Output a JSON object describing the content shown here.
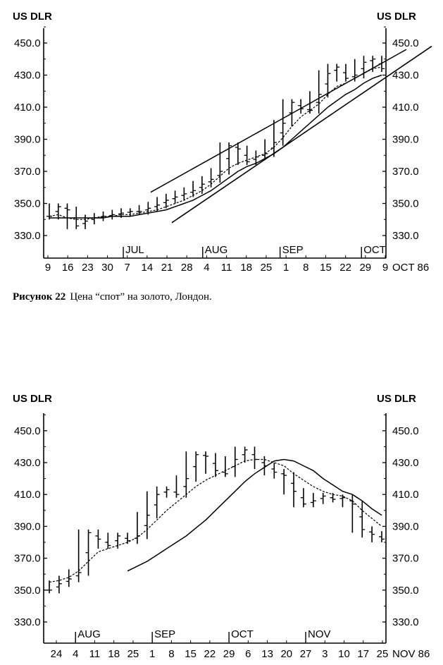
{
  "caption": {
    "label": "Рисунок 22",
    "text": "Цена “спот” на золото, Лондон."
  },
  "chart_data": [
    {
      "type": "bar",
      "style": "ohlc price bars with moving averages and trend channel",
      "y_unit_left": "US DLR",
      "y_unit_right": "US DLR",
      "ylim": [
        320,
        465
      ],
      "yticks": [
        "450.0",
        "430.0",
        "410.0",
        "390.0",
        "370.0",
        "350.0",
        "330.0"
      ],
      "ytick_values": [
        450,
        430,
        410,
        390,
        370,
        350,
        330
      ],
      "x_day_labels": [
        "9",
        "16",
        "23",
        "30",
        "7",
        "14",
        "21",
        "28",
        "4",
        "11",
        "18",
        "25",
        "1",
        "8",
        "15",
        "22",
        "29",
        "9"
      ],
      "x_end_label": "OCT 86",
      "months": [
        "JUL",
        "AUG",
        "SEP",
        "OCT"
      ],
      "month_week_index": [
        3.8,
        7.8,
        11.7,
        15.8
      ],
      "weeks_total": 17,
      "series": [
        {
          "values": [
            342,
            348,
            346,
            336,
            339,
            341,
            342,
            343,
            344,
            345,
            345,
            347,
            349,
            352,
            354,
            356,
            358,
            362,
            365,
            370,
            386,
            384,
            376,
            379,
            381,
            388,
            400,
            413,
            409,
            408,
            418,
            431,
            435,
            428,
            430,
            438,
            440,
            434
          ]
        },
        {
          "values": [
            342,
            343,
            341,
            340,
            340,
            341,
            342,
            342,
            343,
            343,
            344,
            345,
            346,
            348,
            350,
            352,
            355,
            358,
            362,
            367,
            372,
            375,
            377,
            379,
            381,
            385,
            391,
            398,
            404,
            408,
            412,
            418,
            423,
            425,
            428,
            431,
            434,
            435
          ]
        },
        {
          "values": [
            341,
            341,
            341,
            341,
            341,
            341,
            341,
            342,
            342,
            342,
            343,
            344,
            345,
            346,
            348,
            350,
            352,
            355,
            358,
            362,
            366,
            370,
            373,
            375,
            378,
            381,
            385,
            390,
            395,
            400,
            405,
            410,
            414,
            418,
            421,
            425,
            428,
            430
          ]
        },
        {
          "name": "",
          "values": [
            357,
            446
          ]
        },
        {
          "name": "",
          "values": [
            338,
            448
          ]
        }
      ]
    },
    {
      "type": "bar",
      "style": "ohlc price bars with moving averages",
      "y_unit_left": "US DLR",
      "y_unit_right": "US DLR",
      "ylim": [
        320,
        465
      ],
      "yticks": [
        "450.0",
        "430.0",
        "410.0",
        "390.0",
        "370.0",
        "350.0",
        "330.0"
      ],
      "ytick_values": [
        450,
        430,
        410,
        390,
        370,
        350,
        330
      ],
      "x_day_labels": [
        "24",
        "4",
        "11",
        "18",
        "25",
        "1",
        "8",
        "15",
        "22",
        "29",
        "6",
        "13",
        "20",
        "27",
        "3",
        "10",
        "17",
        "25"
      ],
      "x_end_label": "NOV 86",
      "months": [
        "AUG",
        "SEP",
        "OCT",
        "NOV"
      ],
      "month_week_index": [
        1.0,
        5.0,
        9.0,
        13.0
      ],
      "weeks_total": 17,
      "series": [
        {
          "values": [
            350,
            354,
            357,
            361,
            386,
            382,
            378,
            384,
            381,
            384,
            397,
            410,
            413,
            410,
            420,
            435,
            434,
            425,
            423,
            432,
            438,
            432,
            428,
            424,
            422,
            412,
            404,
            406,
            409,
            407,
            408,
            404,
            388,
            385,
            382
          ]
        },
        {
          "values": [
            355,
            356,
            358,
            362,
            368,
            374,
            376,
            378,
            380,
            383,
            388,
            394,
            400,
            405,
            410,
            415,
            419,
            422,
            425,
            428,
            431,
            432,
            432,
            430,
            428,
            423,
            419,
            415,
            412,
            410,
            409,
            406,
            400,
            395,
            390
          ]
        },
        {
          "values": [
            362,
            365,
            368,
            372,
            376,
            380,
            384,
            389,
            394,
            400,
            406,
            412,
            418,
            423,
            427,
            431,
            432,
            431,
            428,
            425,
            420,
            416,
            412,
            410,
            406,
            401,
            397
          ]
        }
      ]
    }
  ]
}
